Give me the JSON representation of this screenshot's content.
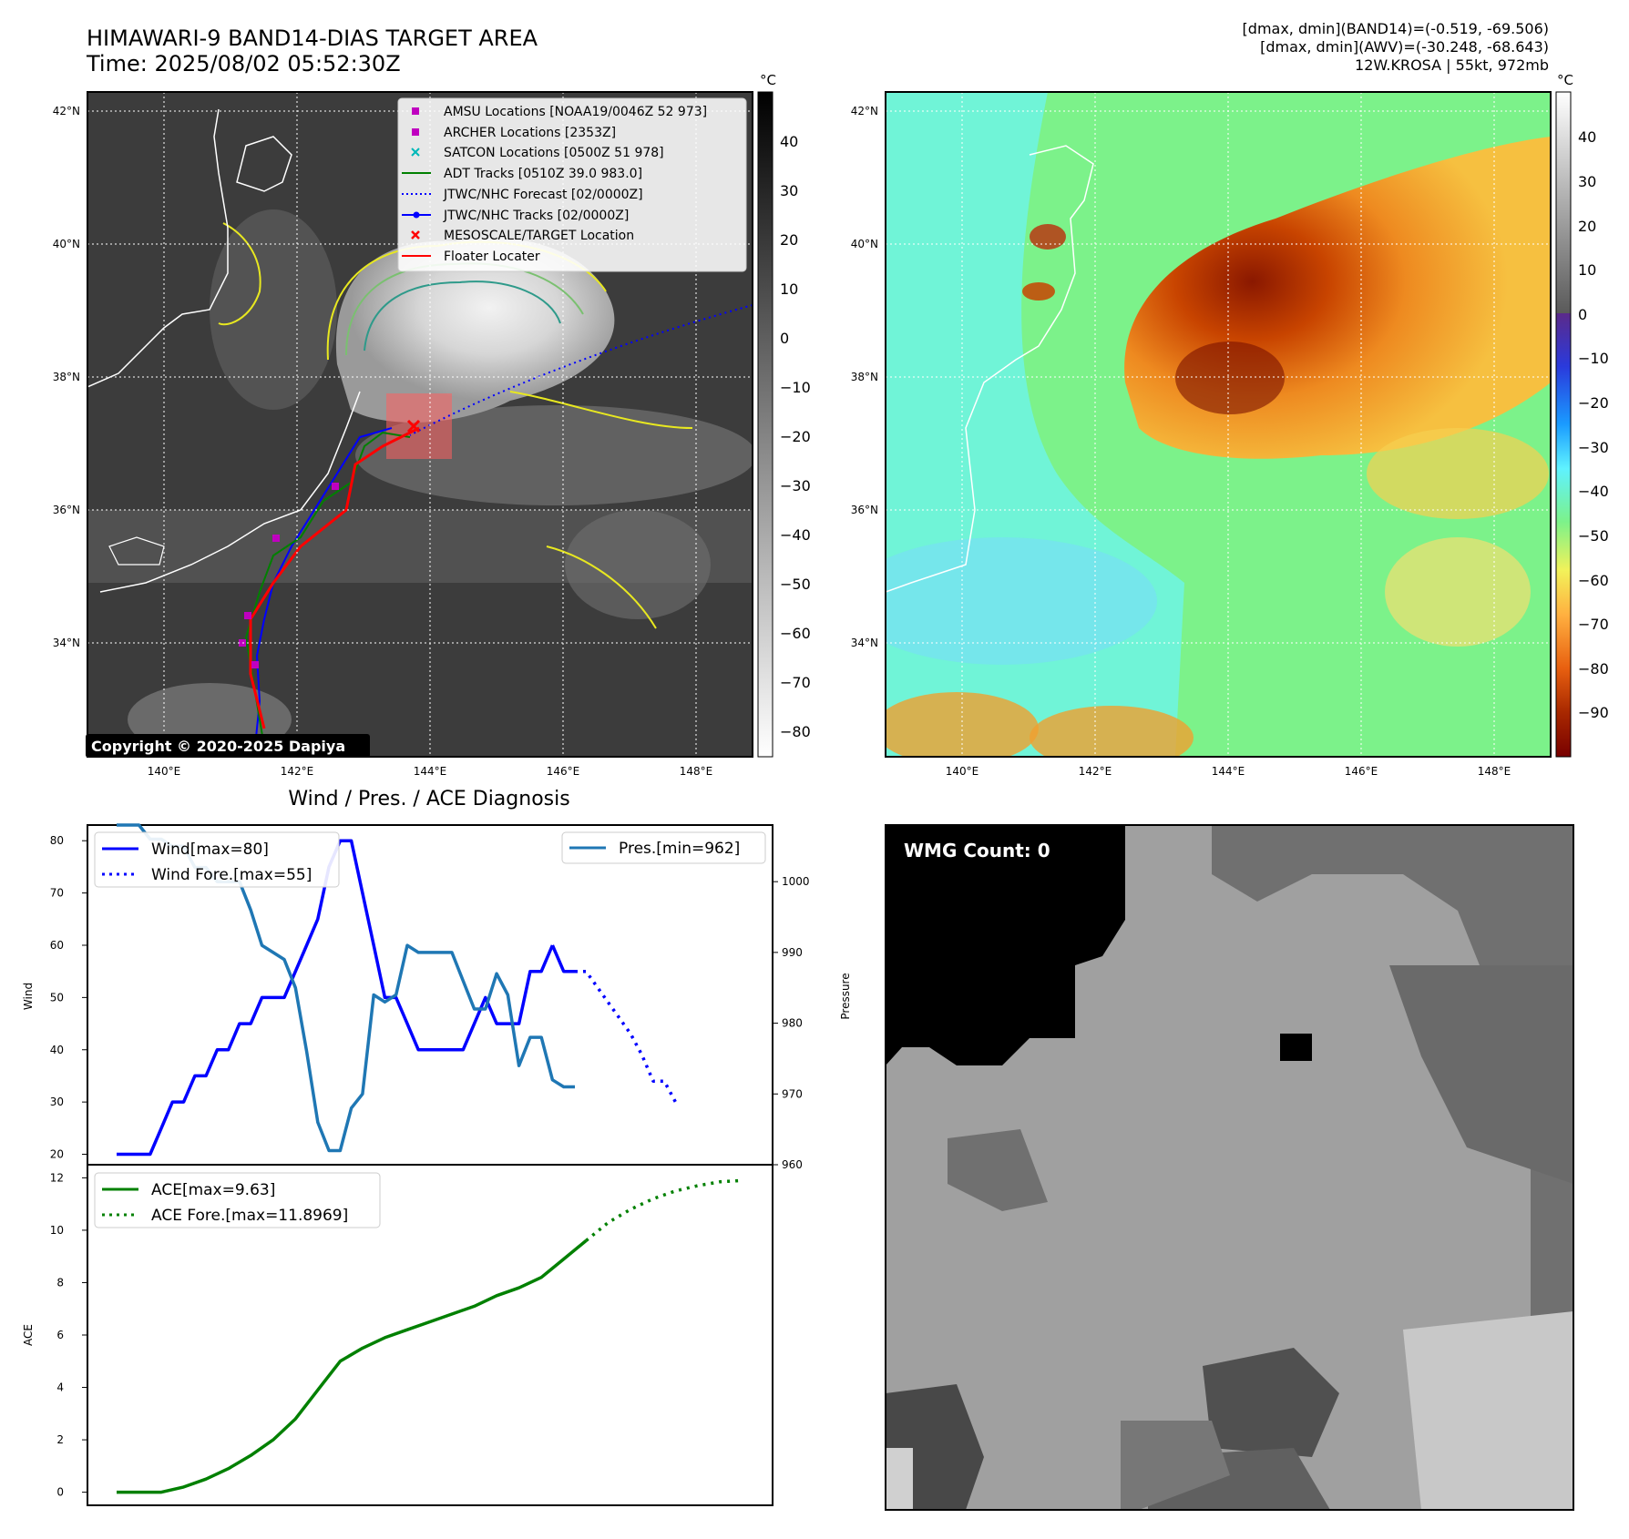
{
  "header": {
    "title_line1": "HIMAWARI-9 BAND14-DIAS TARGET AREA",
    "title_line2": "Time: 2025/08/02 05:52:30Z",
    "info_line1": "[dmax, dmin](BAND14)=(-0.519, -69.506)",
    "info_line2": "[dmax, dmin](AWV)=(-30.248, -68.643)",
    "info_line3": "12W.KROSA | 55kt, 972mb"
  },
  "map_axes": {
    "lat_ticks": [
      "42°N",
      "40°N",
      "38°N",
      "36°N",
      "34°N"
    ],
    "lon_ticks": [
      "140°E",
      "142°E",
      "144°E",
      "146°E",
      "148°E"
    ]
  },
  "colorbar_ir": {
    "unit": "°C",
    "ticks": [
      "40",
      "30",
      "20",
      "10",
      "0",
      "−10",
      "−20",
      "−30",
      "−40",
      "−50",
      "−60",
      "−70",
      "−80"
    ]
  },
  "colorbar_wv": {
    "unit": "°C",
    "ticks": [
      "40",
      "30",
      "20",
      "10",
      "0",
      "−10",
      "−20",
      "−30",
      "−40",
      "−50",
      "−60",
      "−70",
      "−80",
      "−90"
    ]
  },
  "legend": {
    "items": [
      {
        "label": "AMSU Locations [NOAA19/0046Z 52 973]",
        "color": "#c000c0",
        "marker": "square"
      },
      {
        "label": "ARCHER Locations [2353Z]",
        "color": "#c000c0",
        "marker": "square"
      },
      {
        "label": "SATCON Locations [0500Z 51 978]",
        "color": "#00b8b8",
        "marker": "x"
      },
      {
        "label": "ADT Tracks [0510Z 39.0 983.0]",
        "color": "#008000",
        "marker": "line"
      },
      {
        "label": "JTWC/NHC Forecast [02/0000Z]",
        "color": "#0000ff",
        "marker": "dotted"
      },
      {
        "label": "JTWC/NHC Tracks [02/0000Z]",
        "color": "#0000ff",
        "marker": "line-dot"
      },
      {
        "label": "MESOSCALE/TARGET Location",
        "color": "#ff0000",
        "marker": "x"
      },
      {
        "label": "Floater Locater",
        "color": "#ff0000",
        "marker": "line"
      }
    ]
  },
  "copyright": "Copyright © 2020-2025 Dapiya",
  "diagnosis_title": "Wind / Pres. / ACE Diagnosis",
  "wmg_label": "WMG Count: 0",
  "chart_data": [
    {
      "type": "line",
      "title": "Wind / Pres. / ACE Diagnosis",
      "ylabel": "Wind",
      "ylabel_right": "Pressure",
      "ylim": [
        18,
        83
      ],
      "ylim_right": [
        960,
        1008
      ],
      "yticks": [
        "20",
        "30",
        "40",
        "50",
        "60",
        "70",
        "80"
      ],
      "yticks_right": [
        "960",
        "970",
        "980",
        "990",
        "1000"
      ],
      "series": [
        {
          "name": "Wind[max=80]",
          "color": "#0000ff",
          "style": "solid",
          "axis": "left",
          "x": [
            0,
            1,
            2,
            3,
            4,
            5,
            6,
            7,
            8,
            9,
            10,
            11,
            12,
            13,
            14,
            15,
            16,
            17,
            18,
            19,
            20,
            21,
            22,
            23,
            24,
            25,
            26,
            27,
            28,
            29,
            30,
            31,
            32,
            33,
            34,
            35,
            36,
            37,
            38,
            39
          ],
          "values": [
            20,
            20,
            20,
            20,
            25,
            30,
            30,
            35,
            35,
            40,
            40,
            45,
            45,
            50,
            50,
            50,
            55,
            60,
            65,
            75,
            80,
            80,
            70,
            60,
            50,
            50,
            45,
            40,
            40,
            40,
            40,
            40,
            45,
            50,
            45,
            45,
            45,
            55,
            55,
            60
          ]
        },
        {
          "name": "",
          "color": "#0000ff",
          "style": "solid",
          "axis": "left",
          "x": [
            39,
            40,
            41
          ],
          "values": [
            60,
            55,
            55
          ]
        },
        {
          "name": "Wind Fore.[max=55]",
          "color": "#0000ff",
          "style": "dotted",
          "axis": "left",
          "x": [
            41,
            42,
            43,
            44,
            45,
            46,
            47,
            48,
            49,
            50
          ],
          "values": [
            55,
            55,
            52,
            49,
            46,
            43,
            39,
            34,
            34,
            30
          ]
        },
        {
          "name": "Pres.[min=962]",
          "color": "#1f77b4",
          "style": "solid",
          "axis": "right",
          "x": [
            0,
            1,
            2,
            3,
            4,
            5,
            6,
            7,
            8,
            9,
            10,
            11,
            12,
            13,
            14,
            15,
            16,
            17,
            18,
            19,
            20,
            21,
            22,
            23,
            24,
            25,
            26,
            27,
            28,
            29,
            30,
            31,
            32,
            33,
            34,
            35,
            36,
            37,
            38,
            39,
            40,
            41
          ],
          "values": [
            1008,
            1008,
            1008,
            1006,
            1006,
            1005,
            1005,
            1002,
            1002,
            1000,
            1000,
            1000,
            996,
            991,
            990,
            989,
            985,
            976,
            966,
            962,
            962,
            968,
            970,
            984,
            983,
            984,
            991,
            990,
            990,
            990,
            990,
            986,
            982,
            982,
            987,
            984,
            974,
            978,
            978,
            972,
            971,
            971
          ]
        }
      ]
    },
    {
      "type": "line",
      "ylabel": "ACE",
      "ylim": [
        -0.5,
        12.5
      ],
      "yticks": [
        "0",
        "2",
        "4",
        "6",
        "8",
        "10",
        "12"
      ],
      "series": [
        {
          "name": "ACE[max=9.63]",
          "color": "#008000",
          "style": "solid",
          "x": [
            0,
            2,
            4,
            6,
            8,
            10,
            12,
            14,
            16,
            18,
            20,
            22,
            24,
            26,
            28,
            30,
            32,
            34,
            36,
            38,
            40,
            42
          ],
          "values": [
            0,
            0,
            0,
            0.2,
            0.5,
            0.9,
            1.4,
            2.0,
            2.8,
            3.9,
            5.0,
            5.5,
            5.9,
            6.2,
            6.5,
            6.8,
            7.1,
            7.5,
            7.8,
            8.2,
            8.9,
            9.6
          ]
        },
        {
          "name": "ACE Fore.[max=11.8969]",
          "color": "#008000",
          "style": "dotted",
          "x": [
            42,
            44,
            46,
            48,
            50,
            52,
            54,
            56
          ],
          "values": [
            9.6,
            10.3,
            10.8,
            11.2,
            11.5,
            11.7,
            11.85,
            11.9
          ]
        }
      ]
    }
  ]
}
